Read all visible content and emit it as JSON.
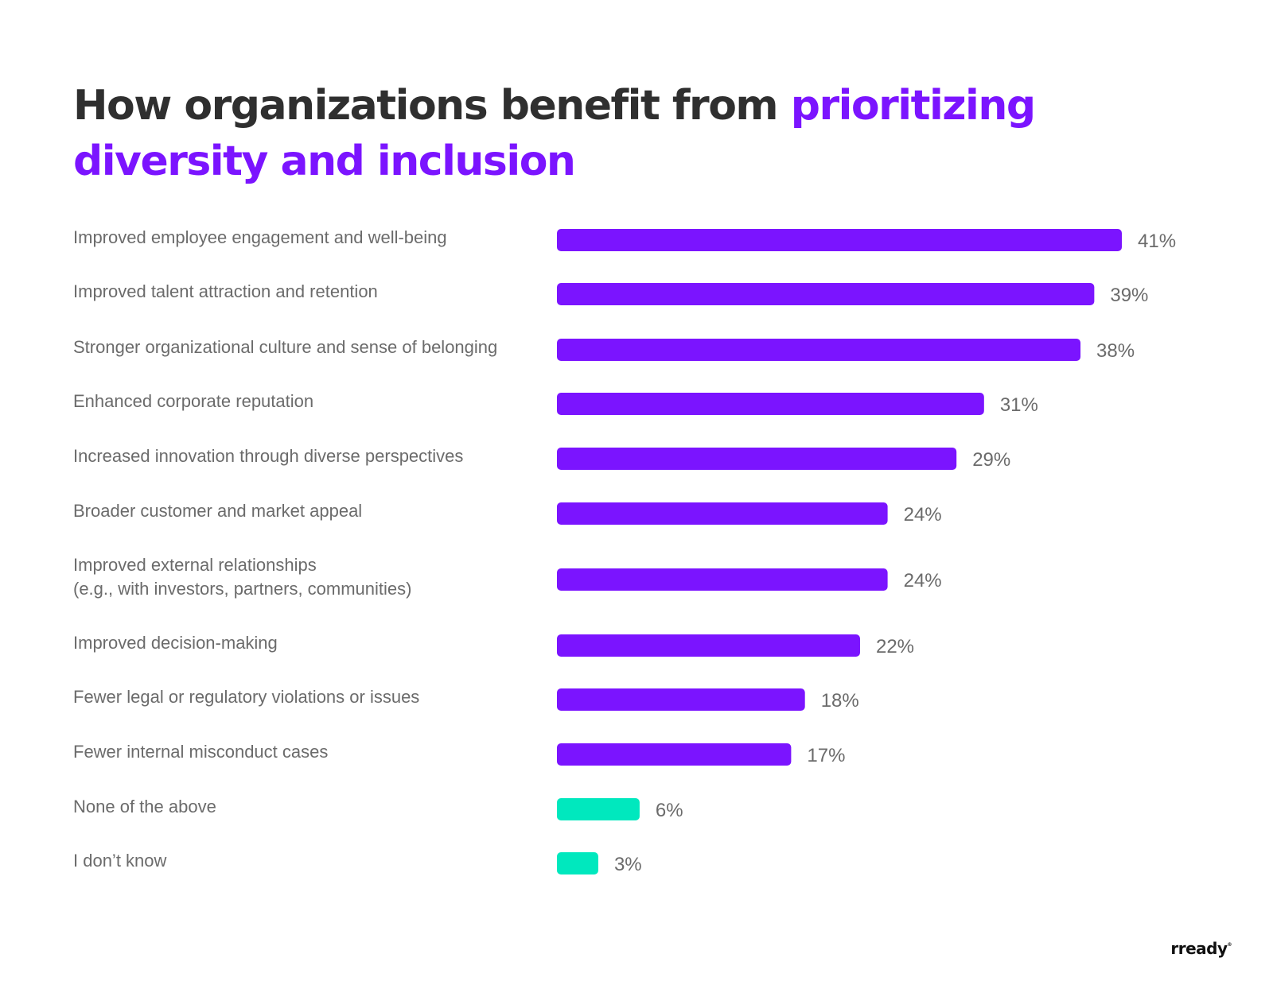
{
  "title": {
    "part1": "How organizations benefit from ",
    "part2": "prioritizing diversity and inclusion"
  },
  "logo": {
    "text": "rready",
    "mark": "®"
  },
  "colors": {
    "primary": "#7b14ff",
    "secondary": "#00e8be",
    "label": "#6b6b6b",
    "title": "#2f2f2f"
  },
  "chart_data": {
    "type": "bar",
    "orientation": "horizontal",
    "categories": [
      [
        "Improved employee engagement and well-being"
      ],
      [
        "Improved talent attraction and retention"
      ],
      [
        "Stronger organizational culture and sense of belonging"
      ],
      [
        "Enhanced corporate reputation"
      ],
      [
        "Increased innovation through diverse perspectives"
      ],
      [
        "Broader customer and market appeal"
      ],
      [
        "Improved external relationships",
        "(e.g., with investors, partners, communities)"
      ],
      [
        "Improved decision-making"
      ],
      [
        "Fewer legal or regulatory violations or issues"
      ],
      [
        "Fewer internal misconduct cases"
      ],
      [
        "None of the above"
      ],
      [
        "I don’t know"
      ]
    ],
    "values": [
      41,
      39,
      38,
      31,
      29,
      24,
      24,
      22,
      18,
      17,
      6,
      3
    ],
    "value_labels": [
      "41%",
      "39%",
      "38%",
      "31%",
      "29%",
      "24%",
      "24%",
      "22%",
      "18%",
      "17%",
      "6%",
      "3%"
    ],
    "bar_colors": [
      "#7b14ff",
      "#7b14ff",
      "#7b14ff",
      "#7b14ff",
      "#7b14ff",
      "#7b14ff",
      "#7b14ff",
      "#7b14ff",
      "#7b14ff",
      "#7b14ff",
      "#00e8be",
      "#00e8be"
    ],
    "xlim": [
      0,
      41
    ],
    "grid": false,
    "legend": "none"
  }
}
